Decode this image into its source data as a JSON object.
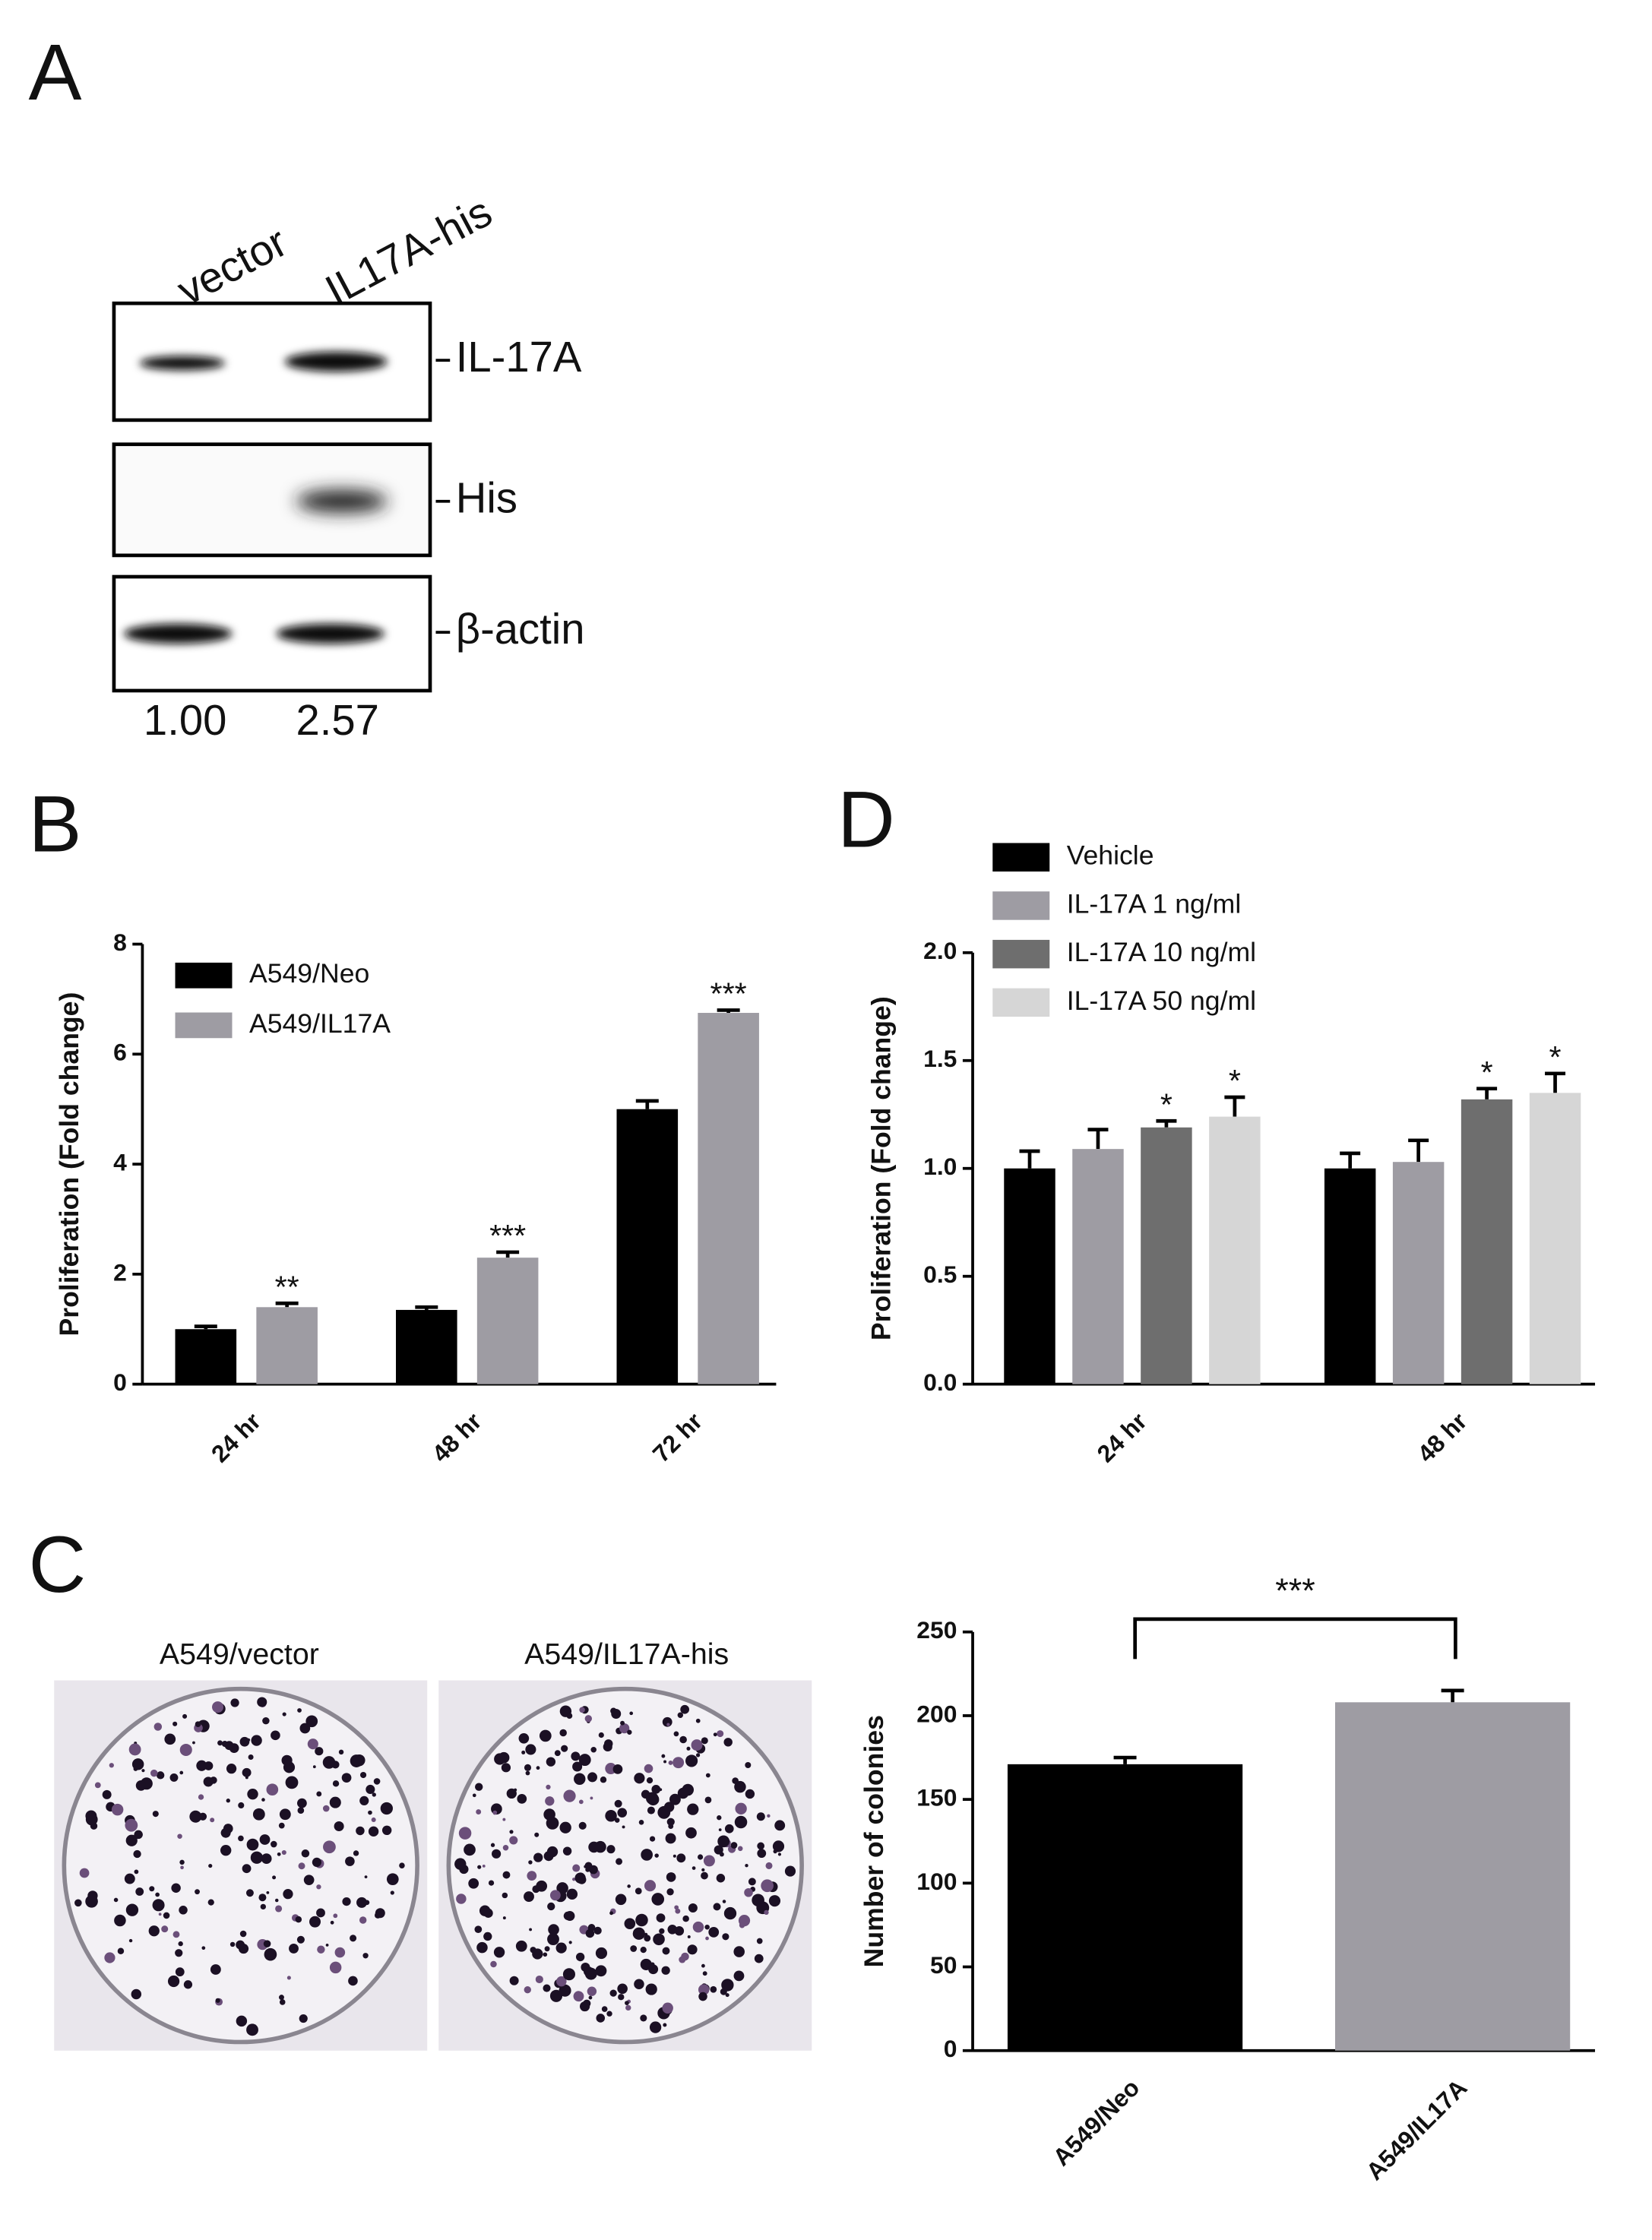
{
  "panel_a": {
    "panel_label": "A",
    "lanes": [
      "vector",
      "IL17A-his"
    ],
    "bands": [
      "IL-17A",
      "His",
      "β-actin"
    ],
    "quantification": [
      "1.00",
      "2.57"
    ]
  },
  "panel_c_images": {
    "labels": [
      "A549/vector",
      "A549/IL17A-his"
    ]
  },
  "chart_data": [
    {
      "type": "bar",
      "panel_label": "B",
      "ylabel": "Proliferation (Fold change)",
      "categories": [
        "24 hr",
        "48 hr",
        "72 hr"
      ],
      "series": [
        {
          "name": "A549/Neo",
          "color": "#000000",
          "values": [
            1.0,
            1.35,
            5.0
          ],
          "errors": [
            0.05,
            0.05,
            0.15
          ]
        },
        {
          "name": "A549/IL17A",
          "color": "#9e9ca3",
          "values": [
            1.4,
            2.3,
            6.75
          ],
          "errors": [
            0.07,
            0.1,
            0.05
          ],
          "significance": [
            "**",
            "***",
            "***"
          ]
        }
      ],
      "ylim": [
        0,
        8
      ],
      "yticks": [
        0,
        2,
        4,
        6,
        8
      ]
    },
    {
      "type": "bar",
      "panel_label": "D",
      "ylabel": "Proliferation (Fold change)",
      "categories": [
        "24 hr",
        "48 hr"
      ],
      "series": [
        {
          "name": "Vehicle",
          "color": "#000000",
          "values": [
            1.0,
            1.0
          ],
          "errors": [
            0.08,
            0.07
          ]
        },
        {
          "name": "IL-17A 1 ng/ml",
          "color": "#9e9ca3",
          "values": [
            1.09,
            1.03
          ],
          "errors": [
            0.09,
            0.1
          ]
        },
        {
          "name": "IL-17A 10 ng/ml",
          "color": "#6e6e6e",
          "values": [
            1.19,
            1.32
          ],
          "errors": [
            0.03,
            0.05
          ],
          "significance": [
            "*",
            "*"
          ]
        },
        {
          "name": "IL-17A 50 ng/ml",
          "color": "#d6d6d6",
          "values": [
            1.24,
            1.35
          ],
          "errors": [
            0.09,
            0.09
          ],
          "significance": [
            "*",
            "*"
          ]
        }
      ],
      "ylim": [
        0,
        2
      ],
      "yticks": [
        {
          "value": 0,
          "label": "0.0"
        },
        {
          "value": 0.5,
          "label": "0.5"
        },
        {
          "value": 1,
          "label": "1.0"
        },
        {
          "value": 1.5,
          "label": "1.5"
        },
        {
          "value": 2,
          "label": "2.0"
        }
      ]
    },
    {
      "type": "bar",
      "panel_label": "C",
      "ylabel": "Number of colonies",
      "categories": [
        "A549/Neo",
        "A549/IL17A"
      ],
      "values": [
        171,
        208
      ],
      "errors": [
        4,
        7
      ],
      "colors": [
        "#000000",
        "#9e9ca3"
      ],
      "annotation": "***",
      "ylim": [
        0,
        250
      ],
      "yticks": [
        0,
        50,
        100,
        150,
        200,
        250
      ]
    }
  ]
}
